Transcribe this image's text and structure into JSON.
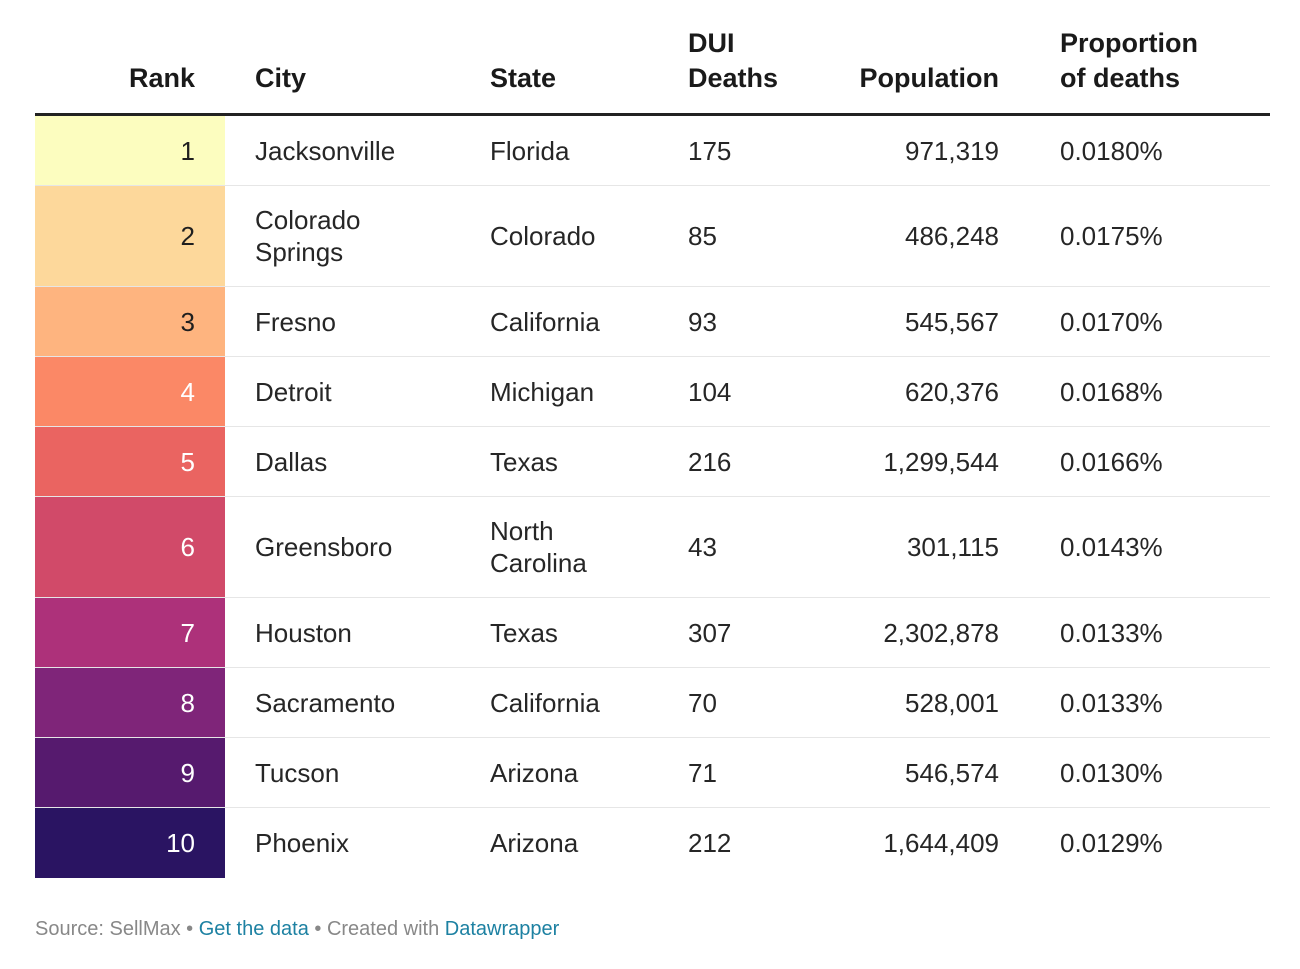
{
  "headers": {
    "rank": "Rank",
    "city": "City",
    "state": "State",
    "dui_line1": "DUI",
    "dui_line2": "Deaths",
    "population": "Population",
    "proportion_line1": "Proportion",
    "proportion_line2": "of deaths"
  },
  "rows": [
    {
      "rank": "1",
      "city": "Jacksonville",
      "state": "Florida",
      "dui_deaths": "175",
      "population": "971,319",
      "proportion": "0.0180%",
      "color": "#fcfdbf",
      "text_color": "#1f1f1f"
    },
    {
      "rank": "2",
      "city_line1": "Colorado",
      "city_line2": "Springs",
      "state": "Colorado",
      "dui_deaths": "85",
      "population": "486,248",
      "proportion": "0.0175%",
      "color": "#fdd89b",
      "text_color": "#1f1f1f"
    },
    {
      "rank": "3",
      "city": "Fresno",
      "state": "California",
      "dui_deaths": "93",
      "population": "545,567",
      "proportion": "0.0170%",
      "color": "#feb47f",
      "text_color": "#1f1f1f"
    },
    {
      "rank": "4",
      "city": "Detroit",
      "state": "Michigan",
      "dui_deaths": "104",
      "population": "620,376",
      "proportion": "0.0168%",
      "color": "#fb8866",
      "text_color": "#ffffff"
    },
    {
      "rank": "5",
      "city": "Dallas",
      "state": "Texas",
      "dui_deaths": "216",
      "population": "1,299,544",
      "proportion": "0.0166%",
      "color": "#ea6461",
      "text_color": "#ffffff"
    },
    {
      "rank": "6",
      "city": "Greensboro",
      "state_line1": "North",
      "state_line2": "Carolina",
      "dui_deaths": "43",
      "population": "301,115",
      "proportion": "0.0143%",
      "color": "#d14a69",
      "text_color": "#ffffff"
    },
    {
      "rank": "7",
      "city": "Houston",
      "state": "Texas",
      "dui_deaths": "307",
      "population": "2,302,878",
      "proportion": "0.0133%",
      "color": "#ad317a",
      "text_color": "#ffffff"
    },
    {
      "rank": "8",
      "city": "Sacramento",
      "state": "California",
      "dui_deaths": "70",
      "population": "528,001",
      "proportion": "0.0133%",
      "color": "#7f2579",
      "text_color": "#ffffff"
    },
    {
      "rank": "9",
      "city": "Tucson",
      "state": "Arizona",
      "dui_deaths": "71",
      "population": "546,574",
      "proportion": "0.0130%",
      "color": "#561a6e",
      "text_color": "#ffffff"
    },
    {
      "rank": "10",
      "city": "Phoenix",
      "state": "Arizona",
      "dui_deaths": "212",
      "population": "1,644,409",
      "proportion": "0.0129%",
      "color": "#2a1462",
      "text_color": "#ffffff"
    }
  ],
  "footer": {
    "source": "Source: SellMax",
    "separator1": " • ",
    "get_data": "Get the data",
    "separator2": " • ",
    "created_with": "Created with ",
    "datawrapper": "Datawrapper"
  }
}
